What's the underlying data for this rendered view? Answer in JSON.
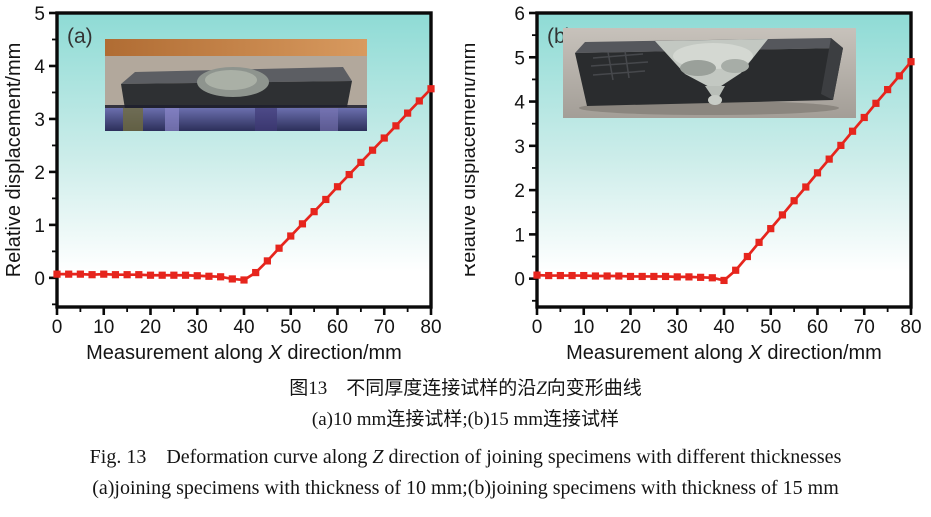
{
  "figure_number": "图13 / Fig. 13",
  "captions": {
    "zh_line1": [
      {
        "t": "图13 不同厚度连接试样的沿"
      },
      {
        "t": "Z",
        "i": true
      },
      {
        "t": "向变形曲线"
      }
    ],
    "zh_line2": [
      {
        "t": "(a)10 mm连接试样;(b)15 mm连接试样"
      }
    ],
    "en_line1": [
      {
        "t": "Fig. 13 Deformation curve along "
      },
      {
        "t": "Z",
        "i": true
      },
      {
        "t": " direction of joining specimens with different thicknesses"
      }
    ],
    "en_line2": [
      {
        "t": "(a)joining specimens with thickness of 10 mm;(b)joining specimens with thickness of 15 mm"
      }
    ]
  },
  "colors": {
    "line_red": "#e6251d",
    "plot_bg_top": "#8edbd5",
    "plot_bg_mid": "#cdedea",
    "plot_bg_bottom": "#ffffff",
    "frame": "#0a0a0a",
    "text": "#141414"
  },
  "chart_data": [
    {
      "type": "line",
      "panel_label": "(a)",
      "xlabel": [
        {
          "t": "Measurement along "
        },
        {
          "t": "X",
          "i": true
        },
        {
          "t": " direction/mm"
        }
      ],
      "ylabel": [
        {
          "t": "Relative displacement/mm"
        }
      ],
      "xlim": [
        0,
        80
      ],
      "ylim": [
        -0.55,
        5
      ],
      "x_ticks": [
        0,
        10,
        20,
        30,
        40,
        50,
        60,
        70,
        80
      ],
      "x_minor_step": 5,
      "y_ticks": [
        0,
        1,
        2,
        3,
        4,
        5
      ],
      "y_minor_step": 0.5,
      "grid": false,
      "legend": "none",
      "x": [
        0,
        2.5,
        5,
        7.5,
        10,
        12.5,
        15,
        17.5,
        20,
        22.5,
        25,
        27.5,
        30,
        32.5,
        35,
        37.5,
        40,
        42.5,
        45,
        47.5,
        50,
        52.5,
        55,
        57.5,
        60,
        62.5,
        65,
        67.5,
        70,
        72.5,
        75,
        77.5,
        80
      ],
      "y": [
        0.07,
        0.07,
        0.07,
        0.06,
        0.07,
        0.06,
        0.06,
        0.06,
        0.05,
        0.05,
        0.05,
        0.05,
        0.04,
        0.03,
        0.02,
        -0.02,
        -0.04,
        0.1,
        0.32,
        0.56,
        0.79,
        1.02,
        1.25,
        1.48,
        1.72,
        1.95,
        2.18,
        2.41,
        2.64,
        2.87,
        3.11,
        3.34,
        3.57
      ]
    },
    {
      "type": "line",
      "panel_label": "(b)",
      "xlabel": [
        {
          "t": "Measurement along "
        },
        {
          "t": "X",
          "i": true
        },
        {
          "t": " direction/mm"
        }
      ],
      "ylabel": [
        {
          "t": "Relative displacement/mm"
        }
      ],
      "xlim": [
        0,
        80
      ],
      "ylim": [
        -0.64,
        6
      ],
      "x_ticks": [
        0,
        10,
        20,
        30,
        40,
        50,
        60,
        70,
        80
      ],
      "x_minor_step": 5,
      "y_ticks": [
        0,
        1,
        2,
        3,
        4,
        5,
        6
      ],
      "y_minor_step": 0.5,
      "grid": false,
      "legend": "none",
      "x": [
        0,
        2.5,
        5,
        7.5,
        10,
        12.5,
        15,
        17.5,
        20,
        22.5,
        25,
        27.5,
        30,
        32.5,
        35,
        37.5,
        40,
        42.5,
        45,
        47.5,
        50,
        52.5,
        55,
        57.5,
        60,
        62.5,
        65,
        67.5,
        70,
        72.5,
        75,
        77.5,
        80
      ],
      "y": [
        0.08,
        0.07,
        0.07,
        0.07,
        0.07,
        0.06,
        0.06,
        0.06,
        0.05,
        0.05,
        0.05,
        0.05,
        0.04,
        0.04,
        0.03,
        0.02,
        -0.04,
        0.19,
        0.5,
        0.82,
        1.13,
        1.44,
        1.76,
        2.07,
        2.39,
        2.7,
        3.01,
        3.33,
        3.64,
        3.96,
        4.27,
        4.58,
        4.9
      ]
    }
  ]
}
